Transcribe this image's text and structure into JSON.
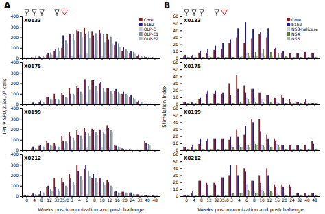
{
  "chart_data": [
    {
      "type": "bar",
      "title": "X0133",
      "annotations": [
        "A"
      ],
      "ylabel": "IFN-γ SFU/2.5x10⁵ cells",
      "legend": "upper right",
      "tick_labels": "y",
      "vaccination_weeks": [
        "0",
        "4",
        "8",
        "32"
      ],
      "challenge_week": "35/0",
      "categories": [
        "0",
        "4",
        "8",
        "12",
        "32",
        "35/0",
        "3",
        "4",
        "6",
        "8",
        "10",
        "12",
        "16",
        "20",
        "24",
        "32",
        "40",
        "48"
      ],
      "ylim": [
        0,
        400
      ],
      "yticks": [
        0,
        100,
        200,
        300,
        400
      ],
      "series": [
        {
          "name": "Core",
          "color": "#8B1A1A",
          "values": [
            8,
            12,
            18,
            35,
            70,
            100,
            230,
            270,
            290,
            260,
            270,
            230,
            130,
            70,
            50,
            25,
            18,
            12
          ]
        },
        {
          "name": "E1E2",
          "color": "#1C1C8B",
          "values": [
            5,
            8,
            12,
            45,
            90,
            220,
            230,
            260,
            230,
            220,
            240,
            180,
            160,
            110,
            70,
            35,
            12,
            8
          ]
        },
        {
          "name": "OLP-C",
          "color": "#C8C8C8",
          "values": [
            5,
            5,
            8,
            18,
            18,
            25,
            25,
            35,
            45,
            35,
            25,
            35,
            25,
            18,
            8,
            8,
            5,
            5
          ]
        },
        {
          "name": "OLP-E1",
          "color": "#7A8B9A",
          "values": [
            8,
            18,
            25,
            55,
            100,
            170,
            230,
            250,
            260,
            240,
            235,
            205,
            140,
            85,
            60,
            25,
            12,
            8
          ]
        },
        {
          "name": "OLP-E2",
          "color": "#B0B8C0",
          "values": [
            5,
            8,
            12,
            35,
            70,
            140,
            170,
            200,
            190,
            170,
            155,
            140,
            110,
            70,
            42,
            18,
            8,
            6
          ]
        }
      ]
    },
    {
      "type": "bar",
      "title": "X0175",
      "tick_labels": "y",
      "categories": [
        "0",
        "4",
        "8",
        "12",
        "32",
        "35/0",
        "3",
        "4",
        "6",
        "8",
        "10",
        "12",
        "16",
        "20",
        "24",
        "32",
        "40",
        "48"
      ],
      "ylim": [
        0,
        400
      ],
      "yticks": [
        0,
        100,
        200,
        300,
        400
      ],
      "series": [
        {
          "color": "#8B1A1A",
          "values": [
            5,
            8,
            25,
            70,
            100,
            110,
            155,
            170,
            240,
            230,
            200,
            155,
            130,
            100,
            70,
            25,
            8,
            5
          ]
        },
        {
          "color": "#1C1C8B",
          "values": [
            5,
            18,
            35,
            70,
            50,
            85,
            100,
            155,
            240,
            230,
            215,
            155,
            145,
            120,
            85,
            35,
            8,
            6
          ]
        },
        {
          "color": "#C8C8C8",
          "values": [
            5,
            5,
            5,
            8,
            8,
            12,
            12,
            18,
            18,
            22,
            12,
            12,
            18,
            12,
            8,
            5,
            5,
            5
          ]
        },
        {
          "color": "#7A8B9A",
          "values": [
            5,
            12,
            25,
            50,
            50,
            68,
            100,
            120,
            170,
            170,
            155,
            130,
            120,
            100,
            60,
            25,
            8,
            5
          ]
        },
        {
          "color": "#B0B8C0",
          "values": [
            5,
            8,
            18,
            42,
            42,
            60,
            85,
            100,
            140,
            130,
            120,
            100,
            100,
            85,
            50,
            18,
            6,
            5
          ]
        }
      ]
    },
    {
      "type": "bar",
      "title": "X0199",
      "tick_labels": "y",
      "categories": [
        "0",
        "4",
        "8",
        "12",
        "32",
        "35/0",
        "3",
        "4",
        "6",
        "8",
        "10",
        "12",
        "16",
        "20",
        "24",
        "32",
        "40",
        "48"
      ],
      "ylim": [
        0,
        400
      ],
      "yticks": [
        0,
        100,
        200,
        300,
        400
      ],
      "series": [
        {
          "color": "#8B1A1A",
          "values": [
            5,
            18,
            42,
            85,
            70,
            130,
            170,
            190,
            215,
            205,
            198,
            240,
            50,
            18,
            12,
            8,
            85,
            8
          ]
        },
        {
          "color": "#1C1C8B",
          "values": [
            8,
            35,
            50,
            70,
            42,
            85,
            130,
            145,
            170,
            190,
            198,
            215,
            42,
            12,
            8,
            6,
            68,
            6
          ]
        },
        {
          "color": "#C8C8C8",
          "values": [
            5,
            5,
            8,
            12,
            8,
            18,
            18,
            22,
            25,
            25,
            25,
            25,
            12,
            8,
            6,
            5,
            18,
            5
          ]
        },
        {
          "color": "#7A8B9A",
          "values": [
            5,
            18,
            35,
            50,
            35,
            85,
            120,
            140,
            162,
            170,
            170,
            190,
            35,
            10,
            6,
            5,
            60,
            5
          ]
        },
        {
          "color": "#B0B8C0",
          "values": [
            5,
            12,
            25,
            42,
            25,
            68,
            95,
            110,
            138,
            145,
            155,
            170,
            25,
            8,
            5,
            5,
            52,
            5
          ]
        }
      ]
    },
    {
      "type": "bar",
      "title": "X0212",
      "xlabel": "Weeks postimmunization and postchallenge",
      "categories": [
        "0",
        "4",
        "8",
        "12",
        "32",
        "35/0",
        "3",
        "4",
        "6",
        "8",
        "10",
        "12",
        "16",
        "20",
        "24",
        "32",
        "40",
        "48"
      ],
      "ylim": [
        0,
        400
      ],
      "yticks": [
        0,
        100,
        200,
        300,
        400
      ],
      "series": [
        {
          "color": "#8B1A1A",
          "values": [
            5,
            8,
            18,
            85,
            170,
            170,
            215,
            300,
            255,
            170,
            170,
            155,
            42,
            42,
            25,
            18,
            8,
            8
          ]
        },
        {
          "color": "#1C1C8B",
          "values": [
            8,
            25,
            50,
            100,
            85,
            130,
            170,
            240,
            300,
            215,
            170,
            130,
            50,
            42,
            35,
            18,
            8,
            6
          ]
        },
        {
          "color": "#C8C8C8",
          "values": [
            5,
            5,
            5,
            8,
            8,
            12,
            8,
            12,
            18,
            12,
            12,
            12,
            8,
            6,
            5,
            5,
            5,
            5
          ]
        },
        {
          "color": "#7A8B9A",
          "values": [
            5,
            18,
            35,
            68,
            68,
            100,
            138,
            190,
            240,
            170,
            138,
            100,
            35,
            35,
            22,
            12,
            6,
            5
          ]
        },
        {
          "color": "#B0B8C0",
          "values": [
            5,
            12,
            25,
            50,
            50,
            85,
            110,
            155,
            190,
            138,
            110,
            85,
            30,
            30,
            18,
            10,
            5,
            5
          ]
        }
      ]
    },
    {
      "type": "bar",
      "title": "X0133",
      "annotations": [
        "B"
      ],
      "ylabel": "Stimulation Index",
      "legend": "upper right",
      "tick_labels": "y",
      "vaccination_weeks": [
        "0",
        "4",
        "8",
        "32"
      ],
      "challenge_week": "35/0",
      "categories": [
        "0",
        "4",
        "8",
        "12",
        "32",
        "35/0",
        "3",
        "4",
        "6",
        "8",
        "10",
        "12",
        "16",
        "20",
        "24",
        "32",
        "40",
        "48"
      ],
      "ylim": [
        0,
        60
      ],
      "yticks": [
        0,
        10,
        20,
        30,
        40,
        50,
        60
      ],
      "series": [
        {
          "name": "Core",
          "color": "#8B1A1A",
          "values": [
            4,
            4,
            7,
            8,
            12,
            13,
            22,
            30,
            22,
            28,
            35,
            30,
            13,
            8,
            7,
            7,
            9,
            7
          ]
        },
        {
          "name": "E1E2",
          "color": "#1C1C8B",
          "values": [
            5,
            5,
            10,
            13,
            18,
            22,
            27,
            43,
            52,
            42,
            38,
            43,
            15,
            10,
            7,
            7,
            9,
            7
          ]
        },
        {
          "name": "NS3-helicase",
          "color": "#D0D0D0",
          "values": [
            2,
            2,
            2,
            4,
            4,
            2,
            4,
            4,
            7,
            4,
            7,
            4,
            2,
            2,
            2,
            2,
            2,
            2
          ]
        },
        {
          "name": "NS4",
          "color": "#5A7A3A",
          "values": [
            2,
            2,
            2,
            2,
            2,
            2,
            2,
            2,
            7,
            9,
            13,
            9,
            7,
            4,
            2,
            2,
            2,
            2
          ]
        },
        {
          "name": "NS5",
          "color": "#A8B8A0",
          "values": [
            2,
            2,
            2,
            2,
            2,
            2,
            2,
            4,
            4,
            4,
            4,
            4,
            2,
            2,
            2,
            2,
            2,
            2
          ]
        }
      ]
    },
    {
      "type": "bar",
      "title": "X0175",
      "tick_labels": "y",
      "categories": [
        "0",
        "4",
        "8",
        "12",
        "32",
        "35/0",
        "3",
        "4",
        "6",
        "8",
        "10",
        "12",
        "16",
        "20",
        "24",
        "32",
        "40",
        "48"
      ],
      "ylim": [
        0,
        60
      ],
      "yticks": [
        0,
        10,
        20,
        30,
        40,
        50,
        60
      ],
      "series": [
        {
          "color": "#8B1A1A",
          "values": [
            4,
            4,
            7,
            15,
            15,
            15,
            30,
            42,
            27,
            22,
            17,
            13,
            9,
            13,
            7,
            4,
            4,
            2
          ]
        },
        {
          "color": "#1C1C8B",
          "values": [
            4,
            4,
            9,
            20,
            20,
            17,
            13,
            22,
            17,
            22,
            17,
            13,
            9,
            9,
            4,
            4,
            7,
            2
          ]
        },
        {
          "color": "#D0D0D0",
          "values": [
            2,
            2,
            2,
            2,
            2,
            2,
            2,
            4,
            9,
            9,
            7,
            4,
            4,
            2,
            2,
            2,
            2,
            2
          ]
        },
        {
          "color": "#5A7A3A",
          "values": [
            2,
            2,
            2,
            2,
            2,
            2,
            2,
            4,
            7,
            4,
            4,
            4,
            2,
            2,
            2,
            2,
            2,
            2
          ]
        },
        {
          "color": "#A8B8A0",
          "values": [
            2,
            2,
            2,
            2,
            2,
            2,
            2,
            2,
            4,
            2,
            2,
            2,
            2,
            2,
            2,
            2,
            2,
            2
          ]
        }
      ]
    },
    {
      "type": "bar",
      "title": "X0199",
      "tick_labels": "y",
      "categories": [
        "0",
        "4",
        "8",
        "12",
        "32",
        "35/0",
        "3",
        "4",
        "6",
        "8",
        "10",
        "12",
        "16",
        "20",
        "24",
        "32",
        "40",
        "48"
      ],
      "ylim": [
        0,
        60
      ],
      "yticks": [
        0,
        10,
        20,
        30,
        40,
        50,
        60
      ],
      "series": [
        {
          "color": "#8B1A1A",
          "values": [
            4,
            4,
            9,
            13,
            17,
            17,
            15,
            30,
            22,
            45,
            45,
            22,
            17,
            7,
            7,
            7,
            7,
            13
          ]
        },
        {
          "color": "#1C1C8B",
          "values": [
            4,
            7,
            17,
            17,
            17,
            17,
            19,
            19,
            35,
            40,
            27,
            17,
            13,
            7,
            7,
            7,
            7,
            9
          ]
        },
        {
          "color": "#D0D0D0",
          "values": [
            2,
            2,
            2,
            2,
            2,
            2,
            7,
            7,
            7,
            13,
            7,
            7,
            9,
            2,
            2,
            2,
            2,
            2
          ]
        },
        {
          "color": "#5A7A3A",
          "values": [
            2,
            2,
            2,
            2,
            2,
            2,
            4,
            4,
            7,
            9,
            7,
            4,
            7,
            2,
            2,
            2,
            2,
            2
          ]
        },
        {
          "color": "#A8B8A0",
          "values": [
            2,
            2,
            2,
            2,
            2,
            2,
            2,
            4,
            4,
            7,
            4,
            4,
            4,
            2,
            2,
            2,
            2,
            2
          ]
        }
      ]
    },
    {
      "type": "bar",
      "title": "X0212",
      "xlabel": "Weeks postimmunization and postchallenge",
      "categories": [
        "0",
        "4",
        "8",
        "12",
        "32",
        "35/0",
        "3",
        "4",
        "6",
        "8",
        "10",
        "12",
        "16",
        "20",
        "24",
        "32",
        "40",
        "48"
      ],
      "ylim": [
        0,
        60
      ],
      "yticks": [
        0,
        10,
        20,
        30,
        40,
        50,
        60
      ],
      "series": [
        {
          "color": "#8B1A1A",
          "values": [
            2,
            4,
            22,
            19,
            19,
            27,
            30,
            45,
            40,
            22,
            30,
            40,
            17,
            17,
            17,
            4,
            4,
            4
          ]
        },
        {
          "color": "#1C1C8B",
          "values": [
            2,
            7,
            22,
            17,
            17,
            27,
            45,
            30,
            35,
            22,
            19,
            30,
            13,
            13,
            13,
            4,
            4,
            4
          ]
        },
        {
          "color": "#D0D0D0",
          "values": [
            2,
            2,
            2,
            2,
            2,
            2,
            4,
            4,
            17,
            7,
            9,
            9,
            4,
            4,
            2,
            2,
            2,
            2
          ]
        },
        {
          "color": "#5A7A3A",
          "values": [
            2,
            2,
            2,
            2,
            2,
            2,
            4,
            4,
            9,
            4,
            7,
            7,
            2,
            2,
            2,
            2,
            2,
            2
          ]
        },
        {
          "color": "#A8B8A0",
          "values": [
            2,
            2,
            2,
            2,
            2,
            2,
            2,
            4,
            7,
            4,
            4,
            4,
            2,
            2,
            2,
            2,
            2,
            2
          ]
        }
      ]
    }
  ]
}
